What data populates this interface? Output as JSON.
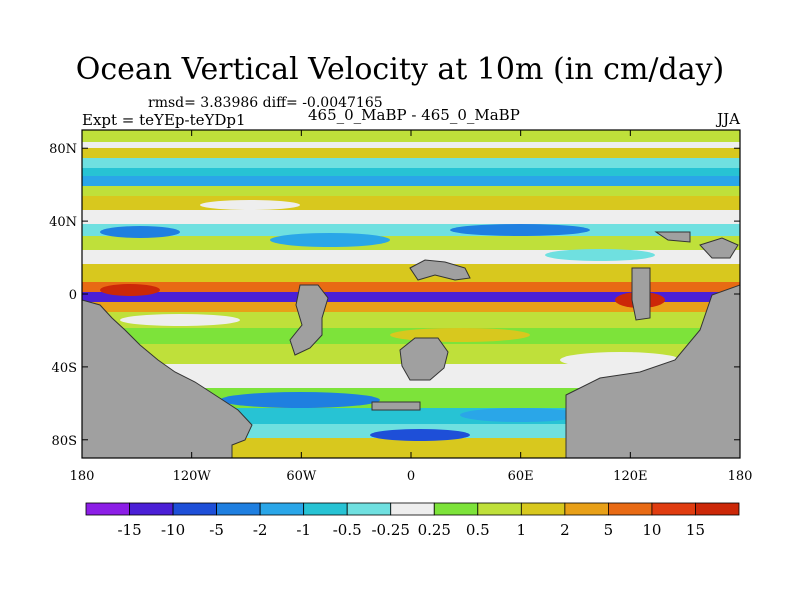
{
  "title": "Ocean Vertical Velocity at 10m (in cm/day)",
  "stats": "rmsd= 3.83986 diff= -0.0047165",
  "experiment": "Expt = teYEp-teYDp1",
  "subtitle": "465_0_MaBP - 465_0_MaBP",
  "season": "JJA",
  "axes": {
    "lat_labels": [
      "80N",
      "40N",
      "0",
      "40S",
      "80S"
    ],
    "lat_values": [
      80,
      40,
      0,
      -40,
      -80
    ],
    "lon_labels": [
      "180",
      "120W",
      "60W",
      "0",
      "60E",
      "120E",
      "180"
    ],
    "lon_values": [
      -180,
      -120,
      -60,
      0,
      60,
      120,
      180
    ],
    "lat_range": [
      -90,
      90
    ],
    "lon_range": [
      -180,
      180
    ]
  },
  "colorbar": {
    "labels": [
      "-15",
      "-10",
      "-5",
      "-2",
      "-1",
      "-0.5",
      "-0.25",
      "0.25",
      "0.5",
      "1",
      "2",
      "5",
      "10",
      "15"
    ],
    "colors": [
      "#8c1ee6",
      "#4b1fd6",
      "#1e4fd8",
      "#1f7fe0",
      "#2aa6e8",
      "#27c3d4",
      "#6fe0e0",
      "#eeeeee",
      "#7de33a",
      "#bfe03a",
      "#d8c81e",
      "#e8a018",
      "#e86a14",
      "#e03c10",
      "#cc2808"
    ]
  },
  "colors": {
    "land": "#a0a0a0",
    "background": "#ffffff"
  }
}
